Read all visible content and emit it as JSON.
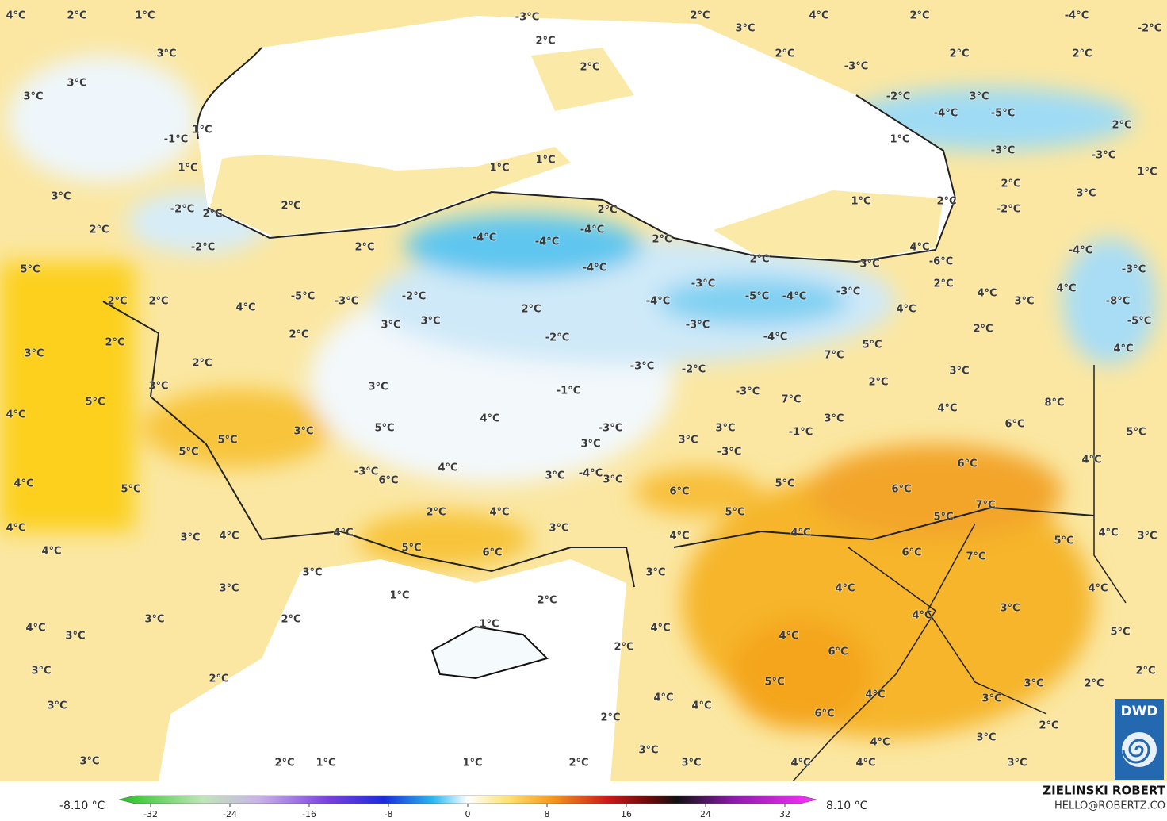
{
  "map": {
    "labels": [
      "4°C",
      "2°C",
      "1°C",
      "3°C",
      "3°C",
      "3°C",
      "1°C",
      "-1°C",
      "1°C",
      "3°C",
      "-2°C",
      "2°C",
      "2°C",
      "2°C",
      "-2°C",
      "2°C",
      "5°C",
      "-3°C",
      "2°C",
      "2°C",
      "2°C",
      "3°C",
      "4°C",
      "2°C",
      "2°C",
      "-4°C",
      "-2°C",
      "2°C",
      "2°C",
      "-3°C",
      "-2°C",
      "3°C",
      "-4°C",
      "-5°C",
      "2°C",
      "1°C",
      "-3°C",
      "-3°C",
      "1°C",
      "1°C",
      "1°C",
      "2°C",
      "3°C",
      "-2°C",
      "1°C",
      "2°C",
      "2°C",
      "2°C",
      "-4°C",
      "-4°C",
      "-4°C",
      "-4°C",
      "2°C",
      "3°C",
      "4°C",
      "-6°C",
      "-4°C",
      "-3°C",
      "2°C",
      "-3°C",
      "-5°C",
      "-4°C",
      "-3°C",
      "4°C",
      "3°C",
      "4°C",
      "-8°C",
      "4°C",
      "-5°C",
      "2°C",
      "-4°C",
      "-3°C",
      "-4°C",
      "7°C",
      "5°C",
      "4°C",
      "-5°C",
      "-3°C",
      "-2°C",
      "2°C",
      "4°C",
      "2°C",
      "2°C",
      "3°C",
      "3°C",
      "2°C",
      "2°C",
      "3°C",
      "-2°C",
      "2°C",
      "-3°C",
      "-2°C",
      "3°C",
      "2°C",
      "3°C",
      "3°C",
      "-1°C",
      "-3°C",
      "7°C",
      "8°C",
      "4°C",
      "4°C",
      "5°C",
      "4°C",
      "3°C",
      "6°C",
      "5°C",
      "-3°C",
      "3°C",
      "-1°C",
      "5°C",
      "3°C",
      "5°C",
      "3°C",
      "3°C",
      "-3°C",
      "5°C",
      "6°C",
      "4°C",
      "4°C",
      "-3°C",
      "6°C",
      "3°C",
      "-4°C",
      "3°C",
      "5°C",
      "4°C",
      "5°C",
      "6°C",
      "6°C",
      "7°C",
      "2°C",
      "4°C",
      "5°C",
      "5°C",
      "4°C",
      "3°C",
      "4°C",
      "4°C",
      "4°C",
      "3°C",
      "3°C",
      "4°C",
      "4°C",
      "5°C",
      "4°C",
      "5°C",
      "6°C",
      "6°C",
      "7°C",
      "3°C",
      "3°C",
      "3°C",
      "1°C",
      "4°C",
      "4°C",
      "2°C",
      "3°C",
      "2°C",
      "3°C",
      "1°C",
      "4°C",
      "4°C",
      "3°C",
      "4°C",
      "4°C",
      "5°C",
      "6°C",
      "2°C",
      "3°C",
      "2°C",
      "5°C",
      "3°C",
      "2°C",
      "2°C",
      "3°C",
      "4°C",
      "4°C",
      "4°C",
      "6°C",
      "3°C",
      "2°C",
      "2°C",
      "4°C",
      "3°C",
      "3°C",
      "2°C",
      "1°C",
      "1°C",
      "2°C",
      "3°C",
      "3°C",
      "4°C",
      "4°C",
      "3°C"
    ],
    "colorbar": {
      "lim": [
        -32,
        32
      ],
      "ticks": [
        -32,
        -24,
        -16,
        -8,
        0,
        8,
        16,
        24,
        32
      ],
      "min_label": "-8.10 °C",
      "max_label": "8.10 °C"
    },
    "credit": "ZIELINSKI ROBERT",
    "contact": "HELLO@ROBERTZ.CO",
    "logo": "DWD"
  }
}
